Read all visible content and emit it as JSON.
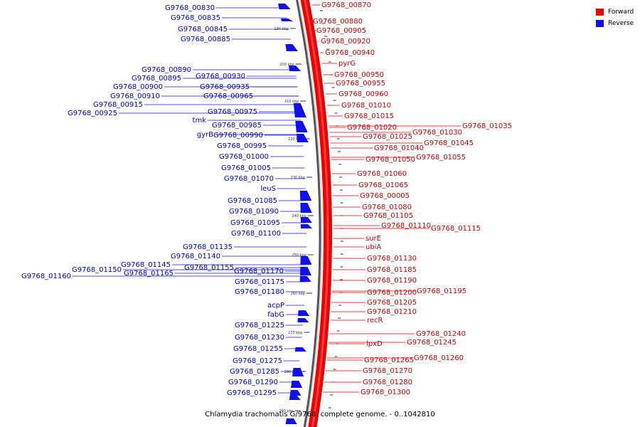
{
  "caption": "Chlamydia trachomatis G/9768, complete genome. - 0..1042810",
  "colors": {
    "forward": "#ee0000",
    "reverse": "#1010ee",
    "forward_label": "#cc0000",
    "reverse_label": "#0000cc"
  },
  "legend": [
    {
      "label": "Forward",
      "color": "#ee0000"
    },
    {
      "label": "Reverse",
      "color": "#1010ee"
    }
  ],
  "ticks": [
    "190 kbp",
    "200 kbp",
    "210 kbp",
    "220 kbp",
    "230 kbp",
    "240 kbp",
    "250 kbp",
    "260 kbp",
    "270 kbp",
    "280 kbp",
    "290 kbp"
  ],
  "forward_labels": [
    "G9768_00870",
    "G9768_00880",
    "G9768_00905",
    "G9768_00920",
    "G9768_00940",
    "pyrG",
    "G9768_00950",
    "G9768_00955",
    "G9768_00960",
    "G9768_01010",
    "G9768_01015",
    "G9768_01020",
    "G9768_01025",
    "G9768_01030",
    "G9768_01035",
    "G9768_01040",
    "G9768_01045",
    "G9768_01050",
    "G9768_01055",
    "G9768_01060",
    "G9768_01065",
    "G9768_00005",
    "G9768_01080",
    "G9768_01105",
    "G9768_01110",
    "G9768_01115",
    "surE",
    "ubiA",
    "G9768_01130",
    "G9768_01185",
    "G9768_01190",
    "G9768_01200",
    "G9768_01195",
    "G9768_01205",
    "G9768_01210",
    "recR",
    "G9768_01240",
    "lpxD",
    "G9768_01245",
    "G9768_01265",
    "G9768_01260",
    "G9768_01270",
    "G9768_01280",
    "G9768_01300"
  ],
  "reverse_labels": [
    "G9768_00830",
    "G9768_00835",
    "G9768_00845",
    "G9768_00885",
    "G9768_00890",
    "G9768_00895",
    "G9768_00930",
    "G9768_00900",
    "G9768_00935",
    "G9768_00910",
    "G9768_00965",
    "G9768_00915",
    "G9768_00925",
    "G9768_00975",
    "tmk",
    "G9768_00985",
    "gyrB",
    "G9768_00990",
    "G9768_00995",
    "G9768_01000",
    "G9768_01005",
    "G9768_01070",
    "leuS",
    "G9768_01085",
    "G9768_01090",
    "G9768_01095",
    "G9768_01100",
    "G9768_01135",
    "G9768_01140",
    "G9768_01145",
    "G9768_01150",
    "G9768_01155",
    "G9768_01160",
    "G9768_01165",
    "G9768_01170",
    "G9768_01175",
    "G9768_01180",
    "acpP",
    "fabG",
    "G9768_01225",
    "G9768_01230",
    "G9768_01255",
    "G9768_01275",
    "G9768_01285",
    "G9768_01290",
    "G9768_01295"
  ]
}
